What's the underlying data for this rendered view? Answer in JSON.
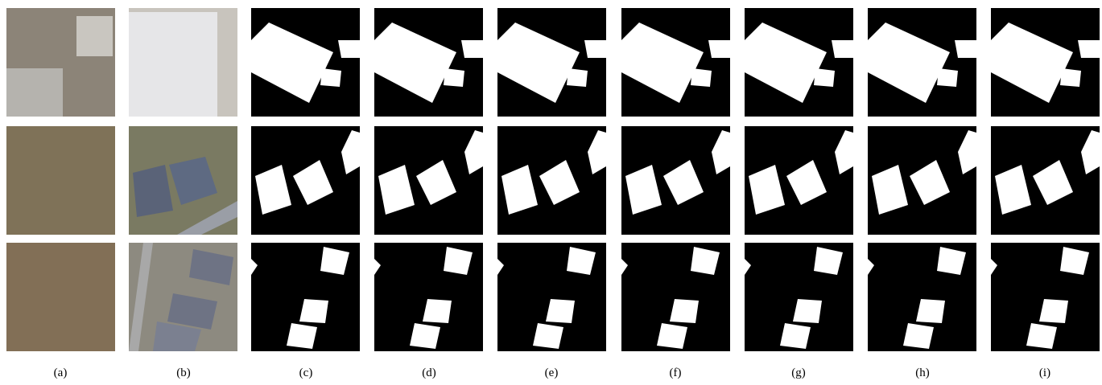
{
  "figure": {
    "captions": [
      "(a)",
      "(b)",
      "(c)",
      "(d)",
      "(e)",
      "(f)",
      "(g)",
      "(h)",
      "(i)"
    ]
  }
}
